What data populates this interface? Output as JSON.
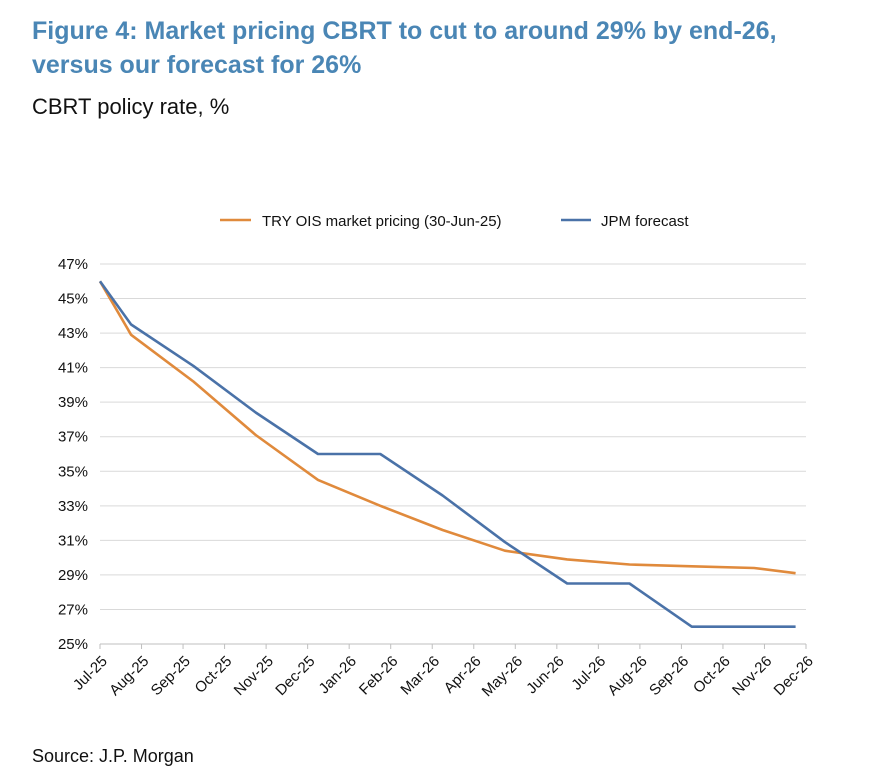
{
  "title": "Figure 4: Market pricing CBRT to cut to around 29% by end-26, versus our forecast for 26%",
  "subtitle": "CBRT policy rate, %",
  "source": "Source: J.P. Morgan",
  "colors": {
    "title": "#4a86b5",
    "ois": "#e08a3c",
    "jpm": "#4a72a8",
    "grid": "#d9d9d9"
  },
  "chart_data": {
    "type": "line",
    "title": "Figure 4: Market pricing CBRT to cut to around 29% by end-26, versus our forecast for 26%",
    "ylabel": "CBRT policy rate, %",
    "xlabel": "",
    "categories": [
      "Jul-25",
      "Aug-25",
      "Sep-25",
      "Oct-25",
      "Nov-25",
      "Dec-25",
      "Jan-26",
      "Feb-26",
      "Mar-26",
      "Apr-26",
      "May-26",
      "Jun-26",
      "Jul-26",
      "Aug-26",
      "Sep-26",
      "Oct-26",
      "Nov-26",
      "Dec-26"
    ],
    "yticks": [
      "47%",
      "45%",
      "43%",
      "41%",
      "39%",
      "37%",
      "35%",
      "33%",
      "31%",
      "29%",
      "27%",
      "25%"
    ],
    "ylim": [
      25,
      47
    ],
    "grid": true,
    "legend": "top",
    "series": [
      {
        "name": "TRY OIS market pricing (30-Jun-25)",
        "x": [
          0,
          0.75,
          2.25,
          3.75,
          5.25,
          6.75,
          8.25,
          9.75,
          11.25,
          12.75,
          14.25,
          15.75,
          16.75
        ],
        "values": [
          46.0,
          42.9,
          40.2,
          37.1,
          34.5,
          33.0,
          31.6,
          30.4,
          29.9,
          29.6,
          29.5,
          29.4,
          29.1
        ]
      },
      {
        "name": "JPM forecast",
        "x": [
          0,
          0.75,
          2.25,
          3.75,
          5.25,
          6.0,
          6.75,
          8.25,
          9.75,
          11.25,
          12.0,
          12.75,
          14.25,
          15.0,
          16.75
        ],
        "values": [
          46.0,
          43.5,
          41.1,
          38.4,
          36.0,
          36.0,
          36.0,
          33.6,
          30.9,
          28.5,
          28.5,
          28.5,
          26.0,
          26.0,
          26.0
        ]
      }
    ]
  }
}
